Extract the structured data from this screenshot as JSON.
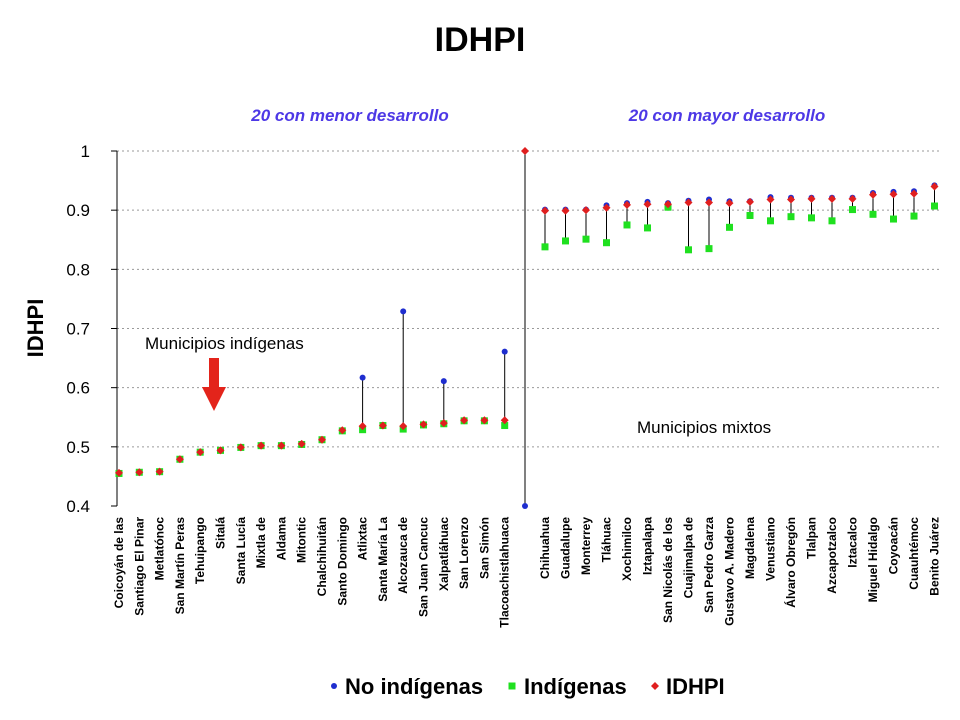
{
  "chart_data": {
    "type": "scatter",
    "title": "IDHPI",
    "ylabel": "IDHPI",
    "ylim": [
      0.4,
      1.0
    ],
    "yticks": [
      "0.4",
      "0.5",
      "0.6",
      "0.7",
      "0.8",
      "0.9",
      "1"
    ],
    "group_headers": [
      "20 con menor desarrollo",
      "20 con mayor desarrollo"
    ],
    "annotations": [
      "Municipios indígenas",
      "Municipios mixtos"
    ],
    "legend_position": "bottom",
    "colors": {
      "no_indigenas": "#1f2ecf",
      "indigenas": "#1fe01f",
      "idhpi": "#e01f1f",
      "arrow": "#e3241b"
    },
    "categories": [
      "Coicoyán de las",
      "Santiago El Pinar",
      "Metlatónoc",
      "San Martín Peras",
      "Tehuipango",
      "Sitalá",
      "Santa Lucía",
      "Mixtla de",
      "Aldama",
      "Mitontic",
      "Chalchihuitán",
      "Santo Domingo",
      "Atlixtac",
      "Santa María La",
      "Alcozauca de",
      "San Juan Cancuc",
      "Xalpatláhuac",
      "San Lorenzo",
      "San Simón",
      "Tlacoachistlahuaca",
      "Chihuahua",
      "Guadalupe",
      "Monterrey",
      "Tláhuac",
      "Xochimilco",
      "Iztapalapa",
      "San Nicolás de los",
      "Cuajimalpa de",
      "San Pedro Garza",
      "Gustavo A. Madero",
      "Magdalena",
      "Venustiano",
      "Álvaro Obregón",
      "Tlalpan",
      "Azcapotzalco",
      "Iztacalco",
      "Miguel Hidalgo",
      "Coyoacán",
      "Cuauhtémoc",
      "Benito Juárez"
    ],
    "series": [
      {
        "name": "No indígenas",
        "marker": "circle",
        "values": [
          null,
          null,
          null,
          null,
          null,
          null,
          null,
          null,
          null,
          null,
          null,
          null,
          0.617,
          null,
          0.729,
          null,
          0.611,
          null,
          null,
          0.661,
          0.901,
          0.901,
          0.901,
          0.908,
          0.912,
          0.914,
          0.912,
          0.916,
          0.918,
          0.915,
          0.915,
          0.922,
          0.921,
          0.921,
          0.921,
          0.921,
          0.929,
          0.931,
          0.932,
          0.942
        ]
      },
      {
        "name": "Indígenas",
        "marker": "square",
        "values": [
          0.455,
          0.457,
          0.458,
          0.479,
          0.491,
          0.494,
          0.499,
          0.502,
          0.502,
          0.504,
          0.512,
          0.527,
          0.529,
          0.536,
          0.53,
          0.537,
          0.539,
          0.544,
          0.544,
          0.536,
          0.838,
          0.848,
          0.851,
          0.845,
          0.875,
          0.87,
          0.905,
          0.833,
          0.835,
          0.871,
          0.891,
          0.882,
          0.889,
          0.887,
          0.882,
          0.901,
          0.893,
          0.885,
          0.89,
          0.907
        ]
      },
      {
        "name": "IDHPI",
        "marker": "diamond",
        "values": [
          0.456,
          0.457,
          0.458,
          0.479,
          0.491,
          0.494,
          0.499,
          0.502,
          0.502,
          0.505,
          0.512,
          0.528,
          0.535,
          0.536,
          0.535,
          0.538,
          0.54,
          0.545,
          0.545,
          0.545,
          0.899,
          0.899,
          0.9,
          0.904,
          0.909,
          0.91,
          0.91,
          0.913,
          0.913,
          0.912,
          0.914,
          0.918,
          0.918,
          0.919,
          0.919,
          0.919,
          0.926,
          0.927,
          0.928,
          0.94
        ]
      }
    ],
    "divider": {
      "from": 0.4,
      "to": 1.0
    }
  }
}
